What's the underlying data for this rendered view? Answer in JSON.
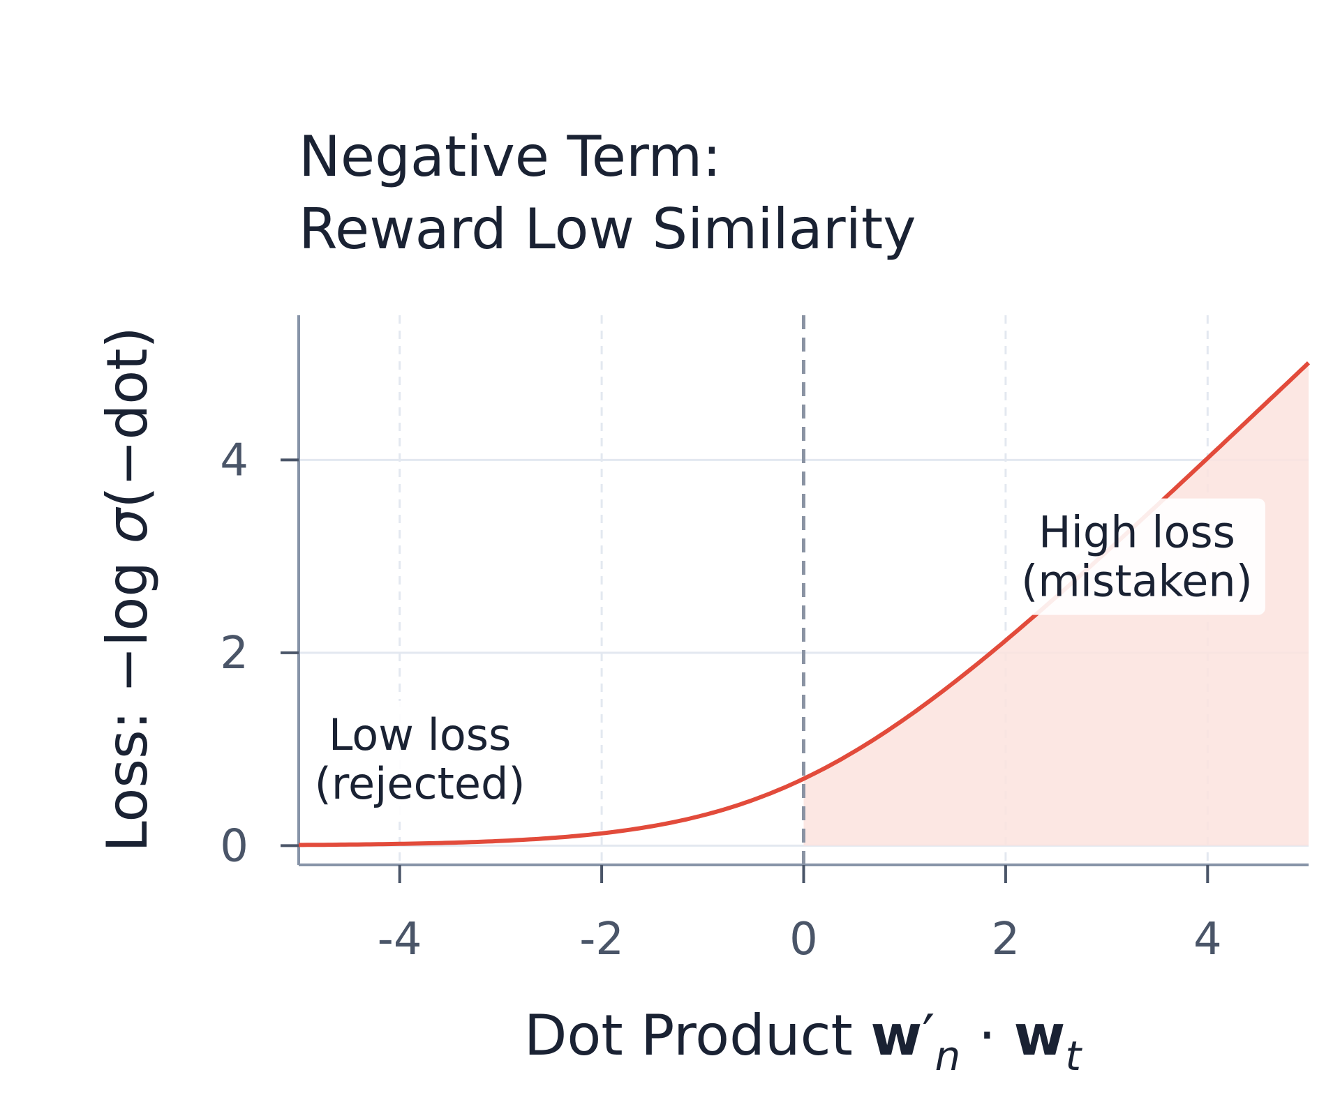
{
  "chart_data": {
    "type": "area",
    "title_lines": [
      "Negative Term:",
      "Reward Low Similarity"
    ],
    "xlabel": {
      "prefix": "Dot Product ",
      "w1": "w",
      "prime": "′",
      "sub1": "n",
      "dot": " · ",
      "w2": "w",
      "sub2": "t"
    },
    "ylabel": {
      "prefix": "Loss: −log ",
      "sigma": "σ",
      "suffix": "(−dot)"
    },
    "xlim": [
      -5,
      5
    ],
    "ylim": [
      -0.2,
      5.5
    ],
    "x_ticks": [
      -4,
      -2,
      0,
      2,
      4
    ],
    "x_tick_labels": [
      "-4",
      "-2",
      "0",
      "2",
      "4"
    ],
    "y_ticks": [
      0,
      2,
      4
    ],
    "y_tick_labels": [
      "0",
      "2",
      "4"
    ],
    "grid": true,
    "reference_line_x": 0,
    "series": [
      {
        "function": "softplus",
        "color": "#e24b3b",
        "fill_color": "#fbe3de",
        "x_range": [
          -5,
          5
        ]
      }
    ],
    "annotations": [
      {
        "lines": [
          "Low loss",
          "(rejected)"
        ],
        "x": -3.8,
        "y": 0.9
      },
      {
        "lines": [
          "High loss",
          "(mistaken)"
        ],
        "x": 3.3,
        "y": 3.0
      }
    ]
  }
}
